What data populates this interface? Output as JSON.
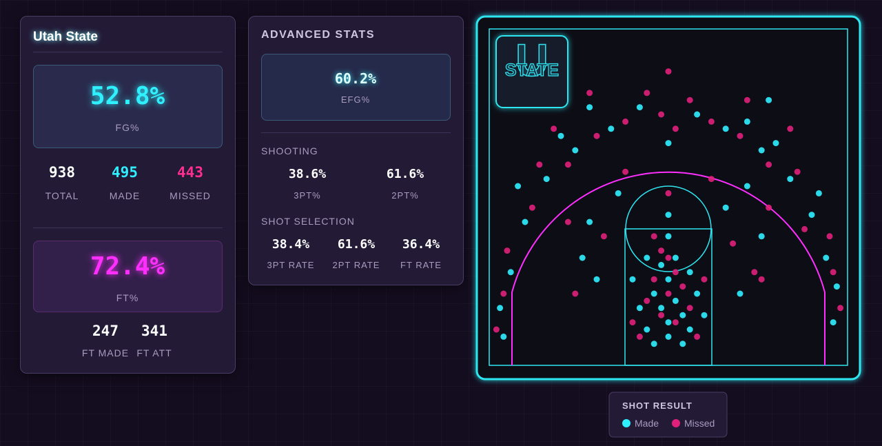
{
  "team": {
    "name": "Utah State"
  },
  "fg": {
    "value": "52.8%",
    "label": "FG%"
  },
  "shots_summary": [
    {
      "value": "938",
      "label": "TOTAL"
    },
    {
      "value": "495",
      "label": "MADE"
    },
    {
      "value": "443",
      "label": "MISSED"
    }
  ],
  "ft": {
    "value": "72.4%",
    "label": "FT%"
  },
  "ft_summary": [
    {
      "value": "247",
      "label": "FT MADE"
    },
    {
      "value": "341",
      "label": "FT ATT"
    }
  ],
  "advanced": {
    "title": "ADVANCED STATS",
    "efg": {
      "value": "60.2%",
      "label": "EFG%"
    },
    "shooting": {
      "title": "SHOOTING",
      "items": [
        {
          "value": "38.6%",
          "label": "3PT%"
        },
        {
          "value": "61.6%",
          "label": "2PT%"
        }
      ]
    },
    "selection": {
      "title": "SHOT SELECTION",
      "items": [
        {
          "value": "38.4%",
          "label": "3PT RATE"
        },
        {
          "value": "61.6%",
          "label": "2PT RATE"
        },
        {
          "value": "36.4%",
          "label": "FT RATE"
        }
      ]
    }
  },
  "shot_chart": {
    "logo": {
      "letter": "U",
      "word": "STATE"
    },
    "made": [
      [
        25,
        6
      ],
      [
        24,
        8
      ],
      [
        23,
        10
      ],
      [
        26,
        9
      ],
      [
        27,
        7
      ],
      [
        22,
        5
      ],
      [
        28,
        5
      ],
      [
        25,
        12
      ],
      [
        21,
        8
      ],
      [
        29,
        10
      ],
      [
        24,
        14
      ],
      [
        26,
        15
      ],
      [
        23,
        3
      ],
      [
        27,
        3
      ],
      [
        25,
        18
      ],
      [
        20,
        12
      ],
      [
        30,
        7
      ],
      [
        22,
        15
      ],
      [
        28,
        13
      ],
      [
        25,
        4
      ],
      [
        15,
        12
      ],
      [
        35,
        10
      ],
      [
        14,
        20
      ],
      [
        38,
        18
      ],
      [
        25,
        21
      ],
      [
        18,
        24
      ],
      [
        33,
        22
      ],
      [
        36,
        25
      ],
      [
        13,
        15
      ],
      [
        2,
        4
      ],
      [
        1.5,
        8
      ],
      [
        48,
        6
      ],
      [
        48.5,
        11
      ],
      [
        3,
        13
      ],
      [
        47,
        15
      ],
      [
        5,
        20
      ],
      [
        45,
        21
      ],
      [
        8,
        26
      ],
      [
        42,
        26
      ],
      [
        12,
        30
      ],
      [
        38,
        30
      ],
      [
        17,
        33
      ],
      [
        33,
        33
      ],
      [
        25,
        31
      ],
      [
        21,
        36
      ],
      [
        29,
        35
      ],
      [
        14,
        36
      ],
      [
        36,
        34
      ],
      [
        4,
        25
      ],
      [
        46,
        24
      ],
      [
        10,
        32
      ],
      [
        40,
        31
      ],
      [
        39,
        37
      ]
    ],
    "missed": [
      [
        24,
        7
      ],
      [
        26,
        6
      ],
      [
        23,
        12
      ],
      [
        27,
        11
      ],
      [
        25,
        10
      ],
      [
        21,
        4
      ],
      [
        29,
        4
      ],
      [
        22,
        9
      ],
      [
        28,
        8
      ],
      [
        24,
        16
      ],
      [
        26,
        13
      ],
      [
        30,
        12
      ],
      [
        20,
        6
      ],
      [
        25,
        15
      ],
      [
        23,
        18
      ],
      [
        12,
        10
      ],
      [
        38,
        12
      ],
      [
        16,
        18
      ],
      [
        34,
        17
      ],
      [
        11,
        20
      ],
      [
        39,
        22
      ],
      [
        19,
        27
      ],
      [
        31,
        26
      ],
      [
        25,
        24
      ],
      [
        37,
        13
      ],
      [
        1,
        5
      ],
      [
        2,
        10
      ],
      [
        49,
        8
      ],
      [
        48,
        13
      ],
      [
        2.5,
        16
      ],
      [
        47.5,
        18
      ],
      [
        6,
        22
      ],
      [
        44,
        19
      ],
      [
        7,
        28
      ],
      [
        43,
        27
      ],
      [
        11,
        28
      ],
      [
        39,
        28
      ],
      [
        15,
        32
      ],
      [
        35,
        32
      ],
      [
        19,
        34
      ],
      [
        31,
        34
      ],
      [
        24,
        35
      ],
      [
        26,
        33
      ],
      [
        22,
        38
      ],
      [
        28,
        37
      ],
      [
        14,
        38
      ],
      [
        36,
        37
      ],
      [
        25,
        41
      ],
      [
        9,
        33
      ],
      [
        42,
        33
      ]
    ]
  },
  "legend": {
    "title": "SHOT RESULT",
    "made": "Made",
    "missed": "Missed"
  }
}
